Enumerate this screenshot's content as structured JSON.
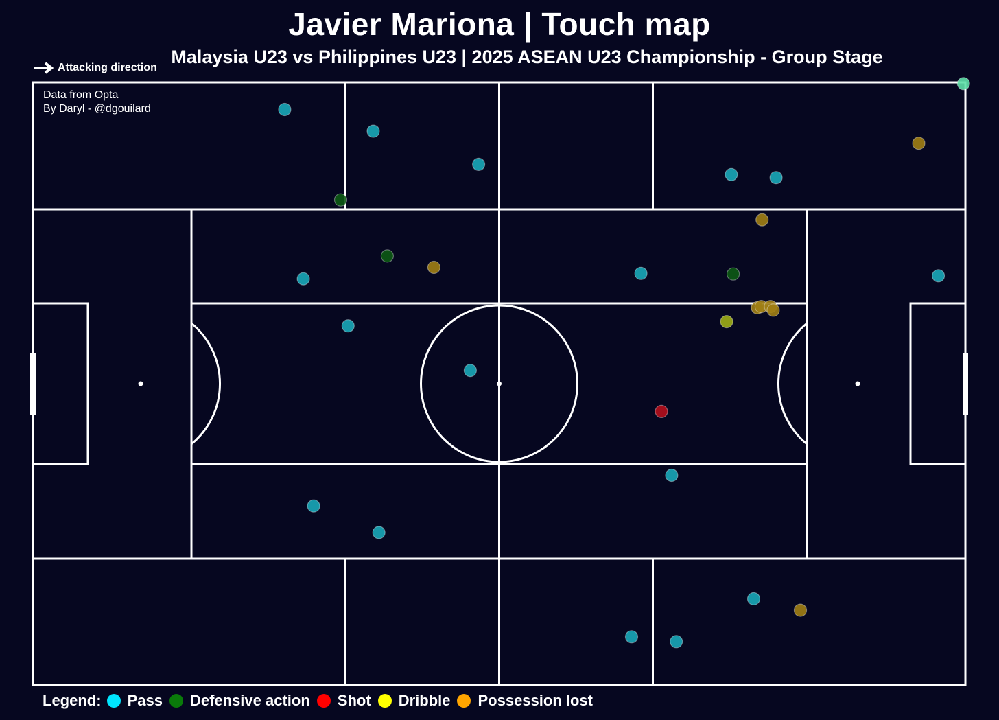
{
  "title": "Javier Mariona | Touch map",
  "subtitle": "Malaysia U23 vs Philippines U23 | 2025 ASEAN U23 Championship - Group Stage",
  "attacking_direction": "Attacking direction",
  "credits": {
    "line1": "Data from Opta",
    "line2": "By Daryl - @dgouilard"
  },
  "legend": {
    "title": "Legend:",
    "items": [
      {
        "label": "Pass",
        "color": "#00e5ff"
      },
      {
        "label": "Defensive action",
        "color": "#0a7a0a"
      },
      {
        "label": "Shot",
        "color": "#ff0000"
      },
      {
        "label": "Dribble",
        "color": "#ffff00"
      },
      {
        "label": "Possession lost",
        "color": "#ffa500"
      }
    ]
  },
  "colors": {
    "background": "#060720",
    "lines": "#ffffff",
    "pass": "#19a9b8",
    "defensive": "#0d5a14",
    "shot": "#b5101c",
    "dribble": "#9fae17",
    "possession_lost": "#a17f14",
    "highlight": "#5fe0a8"
  },
  "chart_data": {
    "type": "scatter",
    "x_range": [
      0,
      100
    ],
    "y_range": [
      0,
      100
    ],
    "attacking_direction": "left-to-right",
    "series": [
      {
        "name": "Pass",
        "color_key": "pass",
        "points": [
          [
            27.0,
            95.5
          ],
          [
            36.5,
            91.9
          ],
          [
            47.8,
            86.4
          ],
          [
            29.0,
            67.4
          ],
          [
            33.8,
            59.6
          ],
          [
            46.9,
            52.2
          ],
          [
            65.2,
            68.3
          ],
          [
            74.9,
            84.7
          ],
          [
            79.7,
            84.2
          ],
          [
            97.1,
            67.9
          ],
          [
            68.5,
            34.8
          ],
          [
            30.1,
            29.7
          ],
          [
            37.1,
            25.3
          ],
          [
            77.3,
            14.3
          ],
          [
            64.2,
            8.0
          ],
          [
            69.0,
            7.2
          ],
          [
            99.8,
            99.8
          ]
        ]
      },
      {
        "name": "Defensive action",
        "color_key": "defensive",
        "points": [
          [
            33.0,
            80.5
          ],
          [
            38.0,
            71.2
          ],
          [
            75.1,
            68.2
          ]
        ]
      },
      {
        "name": "Shot",
        "color_key": "shot",
        "points": [
          [
            67.4,
            45.4
          ]
        ]
      },
      {
        "name": "Dribble",
        "color_key": "dribble",
        "points": [
          [
            74.4,
            60.3
          ]
        ]
      },
      {
        "name": "Possession lost",
        "color_key": "possession_lost",
        "points": [
          [
            43.0,
            69.3
          ],
          [
            78.2,
            77.2
          ],
          [
            95.0,
            89.9
          ],
          [
            77.7,
            62.6
          ],
          [
            78.1,
            62.8
          ],
          [
            79.1,
            62.8
          ],
          [
            79.4,
            62.2
          ],
          [
            82.3,
            12.4
          ]
        ]
      }
    ]
  }
}
